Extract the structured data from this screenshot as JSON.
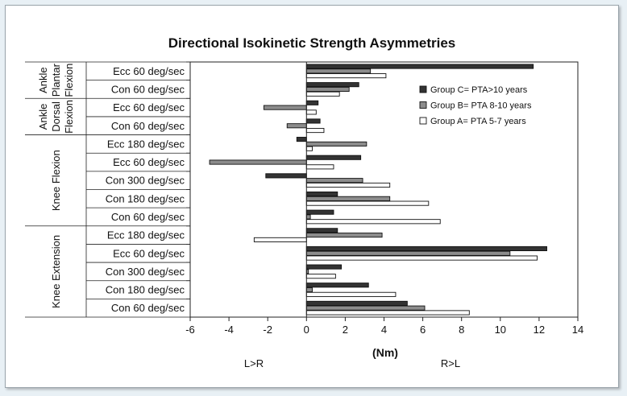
{
  "chart_data": {
    "type": "bar",
    "orientation": "horizontal",
    "title": "Directional Isokinetic Strength Asymmetries",
    "xlabel": "(Nm)",
    "left_note": "L>R",
    "right_note": "R>L",
    "xlim": [
      -6,
      14
    ],
    "xticks": [
      -6,
      -4,
      -2,
      0,
      2,
      4,
      6,
      8,
      10,
      12,
      14
    ],
    "grid": false,
    "legend_position": "right",
    "groups": [
      {
        "name": [
          "Ankle",
          "Plantar",
          "Flexion"
        ],
        "start": 0,
        "count": 2
      },
      {
        "name": [
          "Ankle",
          "Dorsal",
          "Flexion"
        ],
        "start": 2,
        "count": 2
      },
      {
        "name": [
          "Knee Flexion"
        ],
        "start": 4,
        "count": 5
      },
      {
        "name": [
          "Knee Extension"
        ],
        "start": 9,
        "count": 5
      }
    ],
    "categories": [
      "Ecc 60 deg/sec",
      "Con 60 deg/sec",
      "Ecc 60 deg/sec",
      "Con 60 deg/sec",
      "Ecc 180 deg/sec",
      "Ecc 60 deg/sec",
      "Con 300 deg/sec",
      "Con 180 deg/sec",
      "Con 60 deg/sec",
      "Ecc 180 deg/sec",
      "Ecc 60 deg/sec",
      "Con 300 deg/sec",
      "Con 180 deg/sec",
      "Con 60 deg/sec"
    ],
    "series": [
      {
        "name": "Group C= PTA>10 years",
        "color": "#333333",
        "values": [
          11.7,
          2.7,
          0.6,
          0.7,
          -0.5,
          2.8,
          -2.1,
          1.6,
          1.4,
          1.6,
          12.4,
          1.8,
          3.2,
          5.2
        ]
      },
      {
        "name": "Group B= PTA 8-10 years",
        "color": "#8c8c8c",
        "values": [
          3.3,
          2.2,
          -2.2,
          -1.0,
          3.1,
          -5.0,
          2.9,
          4.3,
          0.2,
          3.9,
          10.5,
          0.1,
          0.3,
          6.1
        ]
      },
      {
        "name": "Group A= PTA 5-7 years",
        "color": "#ffffff",
        "values": [
          4.1,
          1.7,
          0.5,
          0.9,
          0.3,
          1.4,
          4.3,
          6.3,
          6.9,
          -2.7,
          11.9,
          1.5,
          4.6,
          8.4
        ]
      }
    ]
  }
}
